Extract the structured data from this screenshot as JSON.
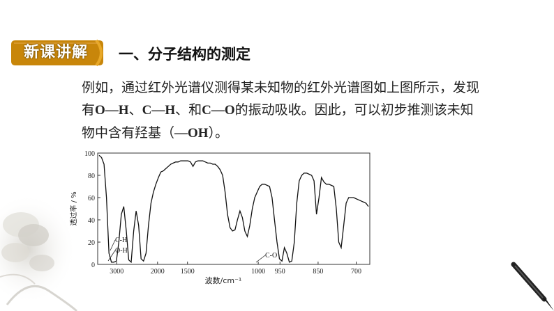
{
  "badge": {
    "label": "新课讲解",
    "color": "#c8860a"
  },
  "section": {
    "title": "一、分子结构的测定"
  },
  "paragraph": {
    "line1": "例如，通过红外光谱仪测得某未知物的红外光谱图如上图所示，发现",
    "line2_prefix": "有",
    "bond_oh": "O—H",
    "sep1": "、",
    "bond_ch": "C—H",
    "sep2": "、和",
    "bond_co": "C—O",
    "line2_suffix": "的振动吸收。因此，可以初步推测该未知",
    "line3_prefix": "物中含有羟基（",
    "group_oh": "—OH",
    "line3_suffix": "）。"
  },
  "chart_data": {
    "type": "line",
    "xlabel": "波数/cm⁻¹",
    "ylabel": "透过率 / %",
    "y_ticks": [
      "0",
      "20",
      "40",
      "60",
      "80",
      "100"
    ],
    "x_ticks": [
      "3000",
      "2000",
      "1500",
      "1000",
      "950",
      "850",
      "700"
    ],
    "ylim": [
      0,
      100
    ],
    "annotations": [
      "C-H",
      "O-H",
      "C-O"
    ],
    "grid": false,
    "series": [
      {
        "x": [
          0,
          1,
          2,
          3,
          4,
          5,
          6,
          7,
          8,
          9,
          10,
          11,
          12,
          13,
          14,
          15,
          16,
          17,
          18,
          19,
          20,
          21,
          22,
          23,
          24,
          25,
          26,
          27,
          28,
          29,
          30,
          31,
          32,
          33,
          34,
          35,
          36,
          37,
          38,
          39,
          40,
          41,
          42,
          43,
          44,
          45,
          46,
          47,
          48,
          49,
          50,
          51,
          52,
          53,
          54,
          55,
          56,
          57,
          58,
          59,
          60,
          61,
          62,
          63,
          64,
          65,
          66,
          67,
          68,
          69,
          70,
          71,
          72,
          73,
          74,
          75,
          76,
          77,
          78,
          79,
          80,
          81,
          82,
          83,
          84,
          85,
          86,
          87,
          88,
          89,
          90,
          91,
          92,
          93,
          94,
          95,
          96,
          97,
          98,
          99,
          100,
          101,
          102,
          103,
          104,
          105,
          106,
          107,
          108,
          109
        ],
        "y": [
          98,
          96,
          90,
          60,
          10,
          2,
          2,
          3,
          20,
          45,
          52,
          30,
          4,
          2,
          30,
          48,
          35,
          5,
          3,
          10,
          35,
          55,
          65,
          72,
          78,
          83,
          84,
          86,
          88,
          90,
          91,
          92,
          92,
          93,
          93,
          93,
          93,
          92,
          88,
          92,
          93,
          93,
          93,
          92,
          91,
          91,
          90,
          90,
          88,
          85,
          80,
          65,
          45,
          33,
          30,
          31,
          40,
          48,
          42,
          30,
          25,
          35,
          50,
          60,
          65,
          70,
          72,
          72,
          71,
          70,
          60,
          40,
          20,
          5,
          3,
          15,
          10,
          2,
          3,
          20,
          55,
          75,
          80,
          82,
          82,
          81,
          80,
          75,
          45,
          60,
          78,
          74,
          72,
          72,
          71,
          70,
          50,
          20,
          15,
          35,
          55,
          60,
          60,
          60,
          59,
          58,
          57,
          56,
          55,
          52
        ]
      }
    ]
  }
}
